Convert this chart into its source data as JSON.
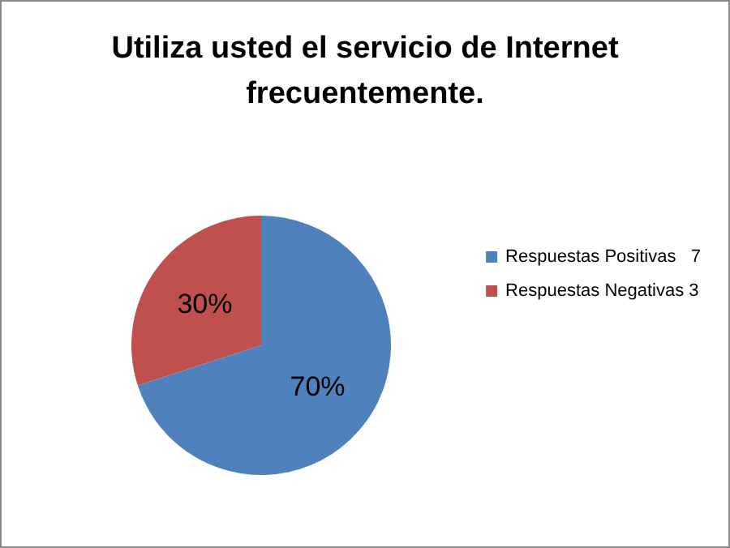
{
  "chart_data": {
    "type": "pie",
    "title": "Utiliza usted el servicio de Internet\nfrecuentemente.",
    "categories": [
      "Respuestas Positivas   7",
      "Respuestas Negativas 3"
    ],
    "values": [
      70,
      30
    ],
    "colors": [
      "#4f81bd",
      "#c0504d"
    ],
    "value_labels": [
      "70%",
      "30%"
    ],
    "legend": "right"
  }
}
